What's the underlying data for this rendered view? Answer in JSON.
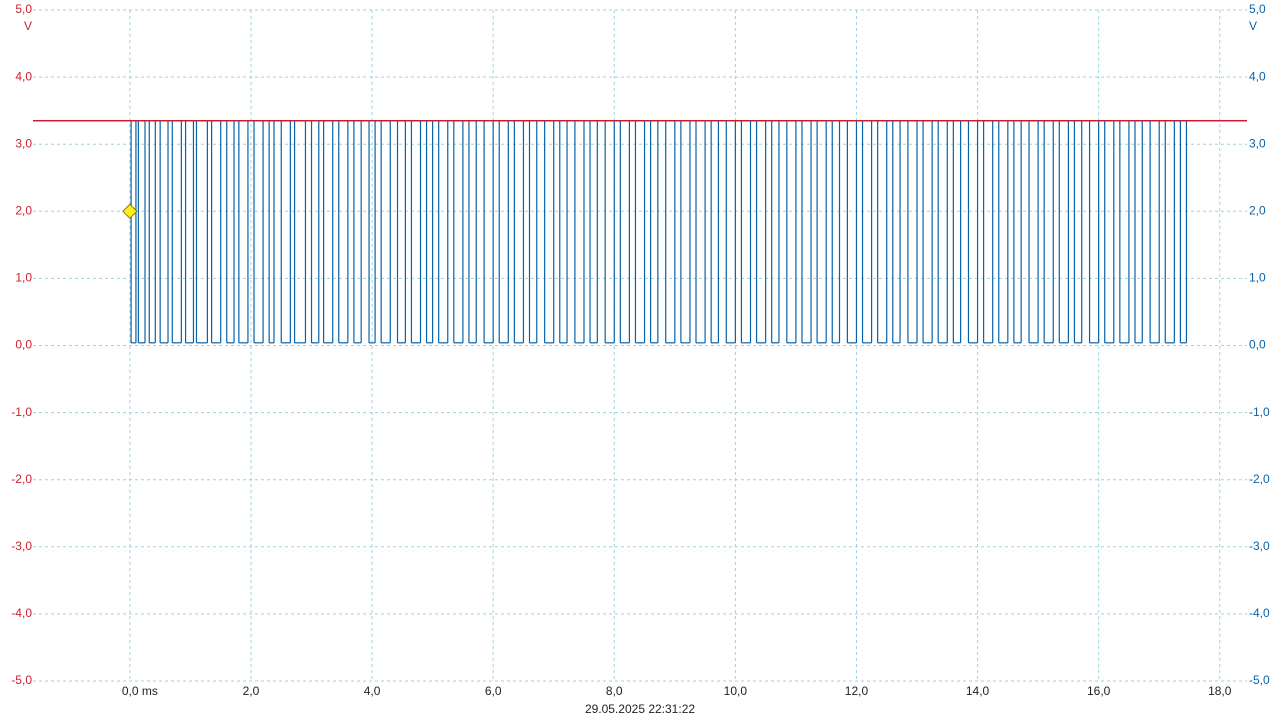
{
  "chart_data": {
    "type": "line",
    "step": true,
    "grid": true,
    "footer": "29.05.2025 22:31:22",
    "y_unit": "V",
    "y2_unit": "V",
    "xlim": [
      -1.6,
      18.45
    ],
    "ylim": [
      -5,
      5
    ],
    "y2lim": [
      -5,
      5
    ],
    "xticks": [
      {
        "value": 0,
        "label": "0,0 ms"
      },
      {
        "value": 2,
        "label": "2,0"
      },
      {
        "value": 4,
        "label": "4,0"
      },
      {
        "value": 6,
        "label": "6,0"
      },
      {
        "value": 8,
        "label": "8,0"
      },
      {
        "value": 10,
        "label": "10,0"
      },
      {
        "value": 12,
        "label": "12,0"
      },
      {
        "value": 14,
        "label": "14,0"
      },
      {
        "value": 16,
        "label": "16,0"
      },
      {
        "value": 18,
        "label": "18,0"
      }
    ],
    "yticks": [
      {
        "value": 5,
        "label": "5,0"
      },
      {
        "value": 4,
        "label": "4,0"
      },
      {
        "value": 3,
        "label": "3,0"
      },
      {
        "value": 2,
        "label": "2,0"
      },
      {
        "value": 1,
        "label": "1,0"
      },
      {
        "value": 0,
        "label": "0,0"
      },
      {
        "value": -1,
        "label": "-1,0"
      },
      {
        "value": -2,
        "label": "-2,0"
      },
      {
        "value": -3,
        "label": "-3,0"
      },
      {
        "value": -4,
        "label": "-4,0"
      },
      {
        "value": -5,
        "label": "-5,0"
      }
    ],
    "y2ticks": [
      {
        "value": 5,
        "label": "5,0"
      },
      {
        "value": 4,
        "label": "4,0"
      },
      {
        "value": 3,
        "label": "3,0"
      },
      {
        "value": 2,
        "label": "2,0"
      },
      {
        "value": 1,
        "label": "1,0"
      },
      {
        "value": 0,
        "label": "0,0"
      },
      {
        "value": -1,
        "label": "-1,0"
      },
      {
        "value": -2,
        "label": "-2,0"
      },
      {
        "value": -3,
        "label": "-3,0"
      },
      {
        "value": -4,
        "label": "-4,0"
      },
      {
        "value": -5,
        "label": "-5,0"
      }
    ],
    "trigger": {
      "x": 0,
      "y": 2.0,
      "color": "#ffee22"
    },
    "series": [
      {
        "color": "#cc1f2e",
        "axis": "y",
        "step": false,
        "x": [
          -1.6,
          18.45
        ],
        "values": [
          3.35,
          3.35
        ]
      },
      {
        "color": "#0a62a8",
        "axis": "y2",
        "x": [
          -1.6,
          0.02,
          0.1,
          0.14,
          0.25,
          0.32,
          0.42,
          0.5,
          0.63,
          0.7,
          0.85,
          0.92,
          1.05,
          1.1,
          1.28,
          1.35,
          1.5,
          1.6,
          1.72,
          1.8,
          1.95,
          2.05,
          2.2,
          2.3,
          2.38,
          2.5,
          2.65,
          2.72,
          2.9,
          3.0,
          3.12,
          3.2,
          3.35,
          3.45,
          3.6,
          3.7,
          3.82,
          3.95,
          4.05,
          4.15,
          4.3,
          4.42,
          4.55,
          4.65,
          4.8,
          4.9,
          5.0,
          5.1,
          5.25,
          5.35,
          5.5,
          5.6,
          5.72,
          5.85,
          6.0,
          6.1,
          6.25,
          6.35,
          6.5,
          6.6,
          6.72,
          6.85,
          7.0,
          7.1,
          7.22,
          7.35,
          7.5,
          7.6,
          7.72,
          7.85,
          8.0,
          8.1,
          8.25,
          8.35,
          8.5,
          8.6,
          8.72,
          8.85,
          9.0,
          9.1,
          9.25,
          9.35,
          9.5,
          9.6,
          9.72,
          9.85,
          10.0,
          10.1,
          10.25,
          10.35,
          10.5,
          10.6,
          10.72,
          10.85,
          11.0,
          11.1,
          11.25,
          11.35,
          11.5,
          11.6,
          11.72,
          11.85,
          12.0,
          12.1,
          12.25,
          12.35,
          12.5,
          12.6,
          12.72,
          12.85,
          13.0,
          13.1,
          13.25,
          13.35,
          13.5,
          13.6,
          13.72,
          13.85,
          14.0,
          14.1,
          14.25,
          14.35,
          14.5,
          14.6,
          14.72,
          14.85,
          15.0,
          15.1,
          15.25,
          15.35,
          15.5,
          15.6,
          15.72,
          15.85,
          16.0,
          16.1,
          16.25,
          16.35,
          16.5,
          16.6,
          16.72,
          16.85,
          17.0,
          17.1,
          17.25,
          17.35,
          17.45,
          18.45
        ],
        "values": [
          3.35,
          0.04,
          3.35,
          0.04,
          3.35,
          0.04,
          3.35,
          0.04,
          3.35,
          0.04,
          3.35,
          0.04,
          3.35,
          0.04,
          3.35,
          0.04,
          3.35,
          0.04,
          3.35,
          0.04,
          3.35,
          0.04,
          3.35,
          0.04,
          3.35,
          0.04,
          3.35,
          0.04,
          3.35,
          0.04,
          3.35,
          0.04,
          3.35,
          0.04,
          3.35,
          0.04,
          3.35,
          0.04,
          3.35,
          0.04,
          3.35,
          0.04,
          3.35,
          0.04,
          3.35,
          0.04,
          3.35,
          0.04,
          3.35,
          0.04,
          3.35,
          0.04,
          3.35,
          0.04,
          3.35,
          0.04,
          3.35,
          0.04,
          3.35,
          0.04,
          3.35,
          0.04,
          3.35,
          0.04,
          3.35,
          0.04,
          3.35,
          0.04,
          3.35,
          0.04,
          3.35,
          0.04,
          3.35,
          0.04,
          3.35,
          0.04,
          3.35,
          0.04,
          3.35,
          0.04,
          3.35,
          0.04,
          3.35,
          0.04,
          3.35,
          0.04,
          3.35,
          0.04,
          3.35,
          0.04,
          3.35,
          0.04,
          3.35,
          0.04,
          3.35,
          0.04,
          3.35,
          0.04,
          3.35,
          0.04,
          3.35,
          0.04,
          3.35,
          0.04,
          3.35,
          0.04,
          3.35,
          0.04,
          3.35,
          0.04,
          3.35,
          0.04,
          3.35,
          0.04,
          3.35,
          0.04,
          3.35,
          0.04,
          3.35,
          0.04,
          3.35,
          0.04,
          3.35,
          0.04,
          3.35,
          0.04,
          3.35,
          0.04,
          3.35,
          0.04,
          3.35,
          0.04,
          3.35,
          0.04,
          3.35,
          0.04,
          3.35,
          0.04,
          3.35,
          0.04,
          3.35,
          0.04,
          3.35,
          0.04,
          3.35,
          0.04,
          3.35,
          3.35
        ]
      }
    ]
  }
}
